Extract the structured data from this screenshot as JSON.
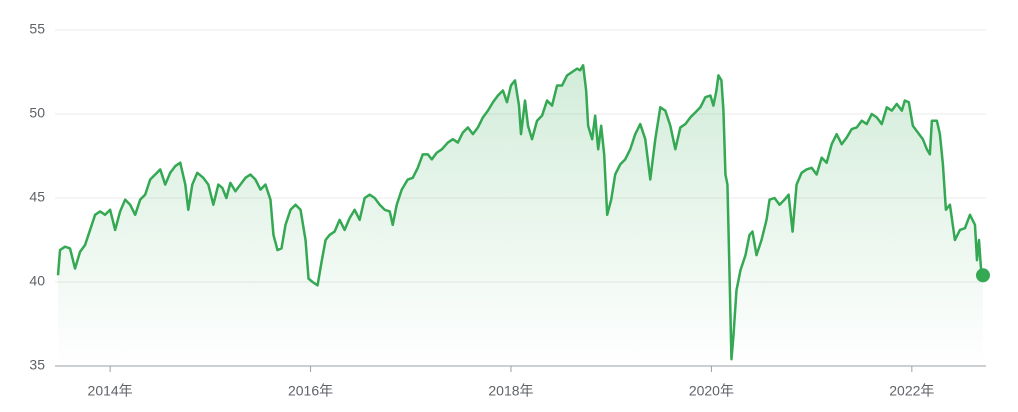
{
  "chart_data": {
    "type": "line",
    "x": [
      2013.48,
      2013.5,
      2013.55,
      2013.6,
      2013.65,
      2013.7,
      2013.75,
      2013.8,
      2013.85,
      2013.9,
      2013.95,
      2014.0,
      2014.05,
      2014.1,
      2014.15,
      2014.2,
      2014.25,
      2014.3,
      2014.35,
      2014.4,
      2014.45,
      2014.5,
      2014.55,
      2014.6,
      2014.65,
      2014.7,
      2014.75,
      2014.78,
      2014.82,
      2014.87,
      2014.93,
      2014.98,
      2015.03,
      2015.08,
      2015.12,
      2015.16,
      2015.2,
      2015.25,
      2015.3,
      2015.35,
      2015.4,
      2015.45,
      2015.5,
      2015.55,
      2015.6,
      2015.63,
      2015.67,
      2015.71,
      2015.75,
      2015.8,
      2015.85,
      2015.9,
      2015.95,
      2015.98,
      2016.02,
      2016.07,
      2016.11,
      2016.15,
      2016.19,
      2016.24,
      2016.29,
      2016.34,
      2016.39,
      2016.44,
      2016.49,
      2016.54,
      2016.59,
      2016.64,
      2016.69,
      2016.74,
      2016.79,
      2016.82,
      2016.86,
      2016.91,
      2016.97,
      2017.02,
      2017.07,
      2017.12,
      2017.17,
      2017.21,
      2017.26,
      2017.31,
      2017.37,
      2017.42,
      2017.47,
      2017.52,
      2017.57,
      2017.62,
      2017.67,
      2017.72,
      2017.77,
      2017.82,
      2017.87,
      2017.92,
      2017.96,
      2018.0,
      2018.04,
      2018.08,
      2018.1,
      2018.14,
      2018.17,
      2018.21,
      2018.26,
      2018.31,
      2018.36,
      2018.41,
      2018.46,
      2018.51,
      2018.56,
      2018.61,
      2018.66,
      2018.69,
      2018.72,
      2018.75,
      2018.77,
      2018.81,
      2018.84,
      2018.87,
      2018.9,
      2018.93,
      2018.96,
      2019.0,
      2019.04,
      2019.09,
      2019.14,
      2019.19,
      2019.24,
      2019.29,
      2019.34,
      2019.39,
      2019.44,
      2019.49,
      2019.54,
      2019.59,
      2019.64,
      2019.69,
      2019.74,
      2019.79,
      2019.84,
      2019.89,
      2019.94,
      2019.99,
      2020.02,
      2020.05,
      2020.07,
      2020.1,
      2020.12,
      2020.14,
      2020.16,
      2020.18,
      2020.2,
      2020.22,
      2020.25,
      2020.29,
      2020.34,
      2020.38,
      2020.41,
      2020.45,
      2020.5,
      2020.55,
      2020.58,
      2020.63,
      2020.68,
      2020.73,
      2020.77,
      2020.81,
      2020.85,
      2020.9,
      2020.95,
      2021.0,
      2021.05,
      2021.1,
      2021.15,
      2021.2,
      2021.25,
      2021.3,
      2021.35,
      2021.4,
      2021.45,
      2021.5,
      2021.55,
      2021.6,
      2021.65,
      2021.7,
      2021.75,
      2021.8,
      2021.85,
      2021.9,
      2021.93,
      2021.97,
      2022.01,
      2022.06,
      2022.11,
      2022.15,
      2022.18,
      2022.2,
      2022.25,
      2022.28,
      2022.31,
      2022.34,
      2022.38,
      2022.43,
      2022.48,
      2022.53,
      2022.58,
      2022.63,
      2022.65,
      2022.67,
      2022.69,
      2022.71
    ],
    "series": [
      {
        "color": "#34a853",
        "values": [
          40.4,
          41.9,
          42.1,
          42.0,
          40.8,
          41.8,
          42.2,
          43.1,
          44.0,
          44.2,
          44.0,
          44.3,
          43.1,
          44.2,
          44.9,
          44.6,
          44.0,
          44.9,
          45.2,
          46.1,
          46.4,
          46.7,
          45.8,
          46.5,
          46.9,
          47.1,
          45.8,
          44.3,
          45.8,
          46.5,
          46.2,
          45.8,
          44.6,
          45.8,
          45.6,
          45.0,
          45.9,
          45.4,
          45.8,
          46.2,
          46.4,
          46.1,
          45.5,
          45.8,
          44.9,
          42.8,
          41.9,
          42.0,
          43.4,
          44.3,
          44.6,
          44.3,
          42.5,
          40.2,
          40.0,
          39.8,
          41.2,
          42.5,
          42.8,
          43.0,
          43.7,
          43.1,
          43.8,
          44.3,
          43.7,
          45.0,
          45.2,
          45.0,
          44.6,
          44.3,
          44.2,
          43.4,
          44.6,
          45.5,
          46.1,
          46.2,
          46.8,
          47.6,
          47.6,
          47.3,
          47.7,
          47.9,
          48.3,
          48.5,
          48.3,
          48.9,
          49.2,
          48.8,
          49.2,
          49.8,
          50.2,
          50.7,
          51.1,
          51.4,
          50.7,
          51.7,
          52.0,
          50.5,
          48.8,
          50.8,
          49.3,
          48.5,
          49.6,
          49.9,
          50.8,
          50.5,
          51.7,
          51.7,
          52.3,
          52.5,
          52.7,
          52.6,
          52.9,
          51.4,
          49.3,
          48.5,
          49.9,
          47.9,
          49.3,
          47.6,
          44.0,
          44.9,
          46.4,
          47.0,
          47.3,
          47.9,
          48.8,
          49.4,
          48.5,
          46.1,
          48.5,
          50.4,
          50.2,
          49.3,
          47.9,
          49.2,
          49.4,
          49.8,
          50.1,
          50.4,
          51.0,
          51.1,
          50.5,
          51.4,
          52.3,
          52.0,
          50.2,
          46.4,
          45.8,
          40.7,
          35.4,
          36.8,
          39.5,
          40.7,
          41.6,
          42.8,
          43.0,
          41.6,
          42.5,
          43.7,
          44.9,
          45.0,
          44.6,
          44.9,
          45.2,
          43.0,
          45.8,
          46.5,
          46.7,
          46.8,
          46.4,
          47.4,
          47.1,
          48.2,
          48.8,
          48.2,
          48.6,
          49.1,
          49.2,
          49.6,
          49.4,
          50.0,
          49.8,
          49.4,
          50.4,
          50.2,
          50.6,
          50.2,
          50.8,
          50.7,
          49.3,
          48.9,
          48.5,
          47.9,
          47.6,
          49.6,
          49.6,
          48.8,
          47.0,
          44.3,
          44.6,
          42.5,
          43.1,
          43.2,
          44.0,
          43.4,
          41.3,
          42.5,
          40.8,
          40.4
        ]
      }
    ],
    "xlim": [
      2013.45,
      2022.74
    ],
    "ylim": [
      35,
      55
    ],
    "xticks": [
      {
        "value": 2014,
        "label": "2014年"
      },
      {
        "value": 2016,
        "label": "2016年"
      },
      {
        "value": 2018,
        "label": "2018年"
      },
      {
        "value": 2020,
        "label": "2020年"
      },
      {
        "value": 2022,
        "label": "2022年"
      }
    ],
    "yticks": [
      35,
      40,
      45,
      50,
      55
    ],
    "grid": true,
    "end_marker": true
  }
}
